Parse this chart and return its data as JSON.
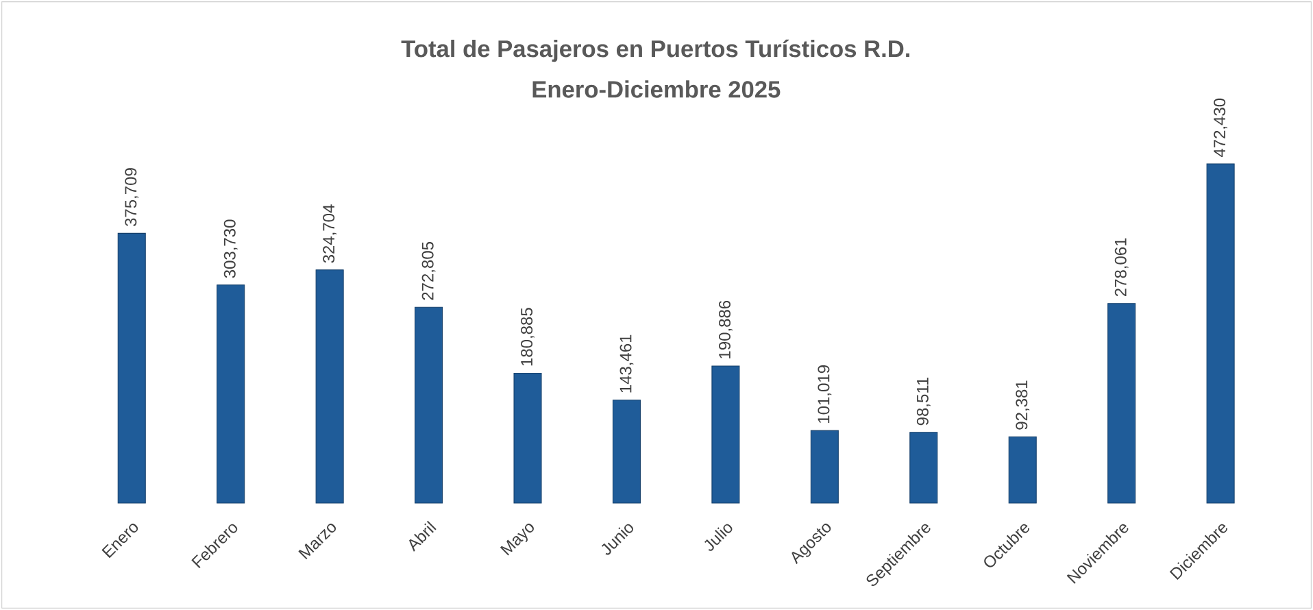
{
  "chart_data": {
    "type": "bar",
    "title": "Total de Pasajeros en Puertos Turísticos R.D.",
    "subtitle": "Enero-Diciembre 2025",
    "categories": [
      "Enero",
      "Febrero",
      "Marzo",
      "Abril",
      "Mayo",
      "Junio",
      "Julio",
      "Agosto",
      "Septiembre",
      "Octubre",
      "Noviembre",
      "Diciembre"
    ],
    "values": [
      375709,
      303730,
      324704,
      272805,
      180885,
      143461,
      190886,
      101019,
      98511,
      92381,
      278061,
      472430
    ],
    "value_labels": [
      "375,709",
      "303,730",
      "324,704",
      "272,805",
      "180,885",
      "143,461",
      "190,886",
      "101,019",
      "98,511",
      "92,381",
      "278,061",
      "472,430"
    ],
    "color": "#1f5c99"
  }
}
